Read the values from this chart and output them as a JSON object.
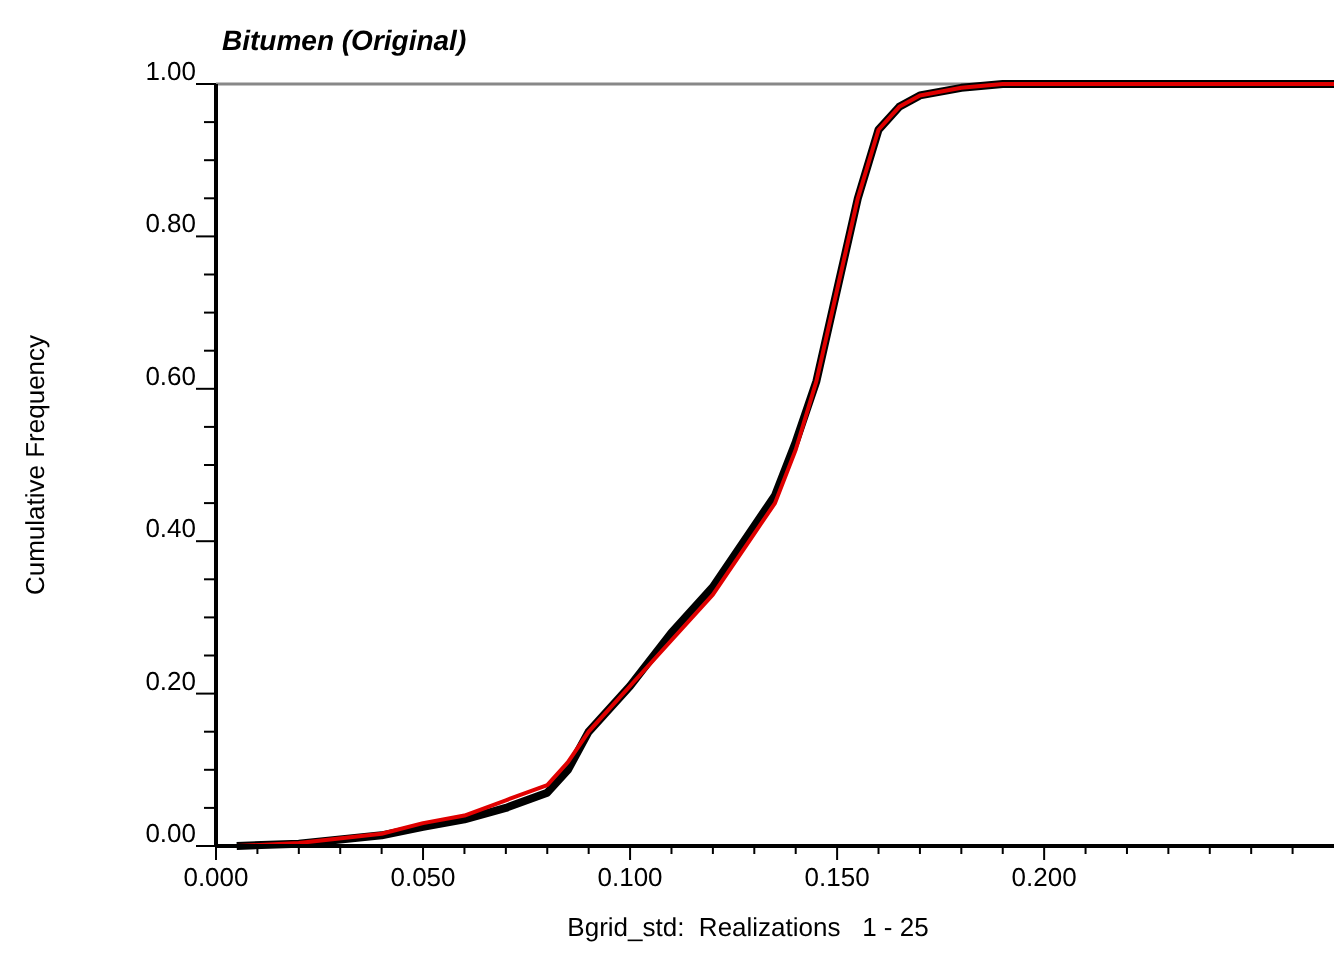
{
  "chart_data": {
    "type": "line",
    "title": "Bitumen (Original)",
    "xlabel": "Bgrid_std:  Realizations   1 - 25",
    "ylabel": "Cumulative Frequency",
    "xlim": [
      0,
      0.27
    ],
    "ylim": [
      0,
      1
    ],
    "xticks": [
      {
        "value": 0,
        "label": "0.000"
      },
      {
        "value": 0.01,
        "label": null
      },
      {
        "value": 0.02,
        "label": null
      },
      {
        "value": 0.03,
        "label": null
      },
      {
        "value": 0.04,
        "label": null
      },
      {
        "value": 0.05,
        "label": "0.050"
      },
      {
        "value": 0.06,
        "label": null
      },
      {
        "value": 0.07,
        "label": null
      },
      {
        "value": 0.08,
        "label": null
      },
      {
        "value": 0.09,
        "label": null
      },
      {
        "value": 0.1,
        "label": "0.100"
      },
      {
        "value": 0.11,
        "label": null
      },
      {
        "value": 0.12,
        "label": null
      },
      {
        "value": 0.13,
        "label": null
      },
      {
        "value": 0.14,
        "label": null
      },
      {
        "value": 0.15,
        "label": "0.150"
      },
      {
        "value": 0.16,
        "label": null
      },
      {
        "value": 0.17,
        "label": null
      },
      {
        "value": 0.18,
        "label": null
      },
      {
        "value": 0.19,
        "label": null
      },
      {
        "value": 0.2,
        "label": "0.200"
      },
      {
        "value": 0.21,
        "label": null
      },
      {
        "value": 0.22,
        "label": null
      },
      {
        "value": 0.23,
        "label": null
      },
      {
        "value": 0.24,
        "label": null
      },
      {
        "value": 0.25,
        "label": null
      },
      {
        "value": 0.26,
        "label": null
      }
    ],
    "yticks": [
      {
        "value": 0,
        "label": "0.00"
      },
      {
        "value": 0.05,
        "label": null
      },
      {
        "value": 0.1,
        "label": null
      },
      {
        "value": 0.15,
        "label": null
      },
      {
        "value": 0.2,
        "label": "0.20"
      },
      {
        "value": 0.25,
        "label": null
      },
      {
        "value": 0.3,
        "label": null
      },
      {
        "value": 0.35,
        "label": null
      },
      {
        "value": 0.4,
        "label": "0.40"
      },
      {
        "value": 0.45,
        "label": null
      },
      {
        "value": 0.5,
        "label": null
      },
      {
        "value": 0.55,
        "label": null
      },
      {
        "value": 0.6,
        "label": "0.60"
      },
      {
        "value": 0.65,
        "label": null
      },
      {
        "value": 0.7,
        "label": null
      },
      {
        "value": 0.75,
        "label": null
      },
      {
        "value": 0.8,
        "label": "0.80"
      },
      {
        "value": 0.85,
        "label": null
      },
      {
        "value": 0.9,
        "label": null
      },
      {
        "value": 0.95,
        "label": null
      },
      {
        "value": 1,
        "label": "1.00"
      }
    ],
    "grid": false,
    "marker": "none",
    "line_style": "solid",
    "ref_lines": [
      {
        "axis": "y",
        "value": 1,
        "color": "#888888"
      }
    ],
    "series": [
      {
        "color": "#000000",
        "x": [
          0.005,
          0.02,
          0.04,
          0.05,
          0.06,
          0.07,
          0.08,
          0.085,
          0.09,
          0.1,
          0.11,
          0.12,
          0.13,
          0.135,
          0.14,
          0.145,
          0.15,
          0.155,
          0.16,
          0.165,
          0.17,
          0.18,
          0.19,
          0.27
        ],
        "values": [
          0,
          0.003,
          0.014,
          0.025,
          0.035,
          0.05,
          0.07,
          0.1,
          0.15,
          0.21,
          0.28,
          0.34,
          0.42,
          0.46,
          0.53,
          0.61,
          0.73,
          0.85,
          0.94,
          0.97,
          0.985,
          0.995,
          1,
          1
        ]
      },
      {
        "color": "#e00000",
        "x": [
          0.005,
          0.02,
          0.04,
          0.05,
          0.06,
          0.07,
          0.08,
          0.085,
          0.09,
          0.1,
          0.11,
          0.12,
          0.13,
          0.135,
          0.14,
          0.145,
          0.15,
          0.155,
          0.16,
          0.165,
          0.17,
          0.18,
          0.19,
          0.27
        ],
        "values": [
          0,
          0.004,
          0.016,
          0.03,
          0.04,
          0.06,
          0.08,
          0.11,
          0.15,
          0.21,
          0.27,
          0.33,
          0.41,
          0.45,
          0.52,
          0.61,
          0.73,
          0.85,
          0.94,
          0.97,
          0.985,
          0.995,
          1,
          1
        ]
      }
    ]
  }
}
